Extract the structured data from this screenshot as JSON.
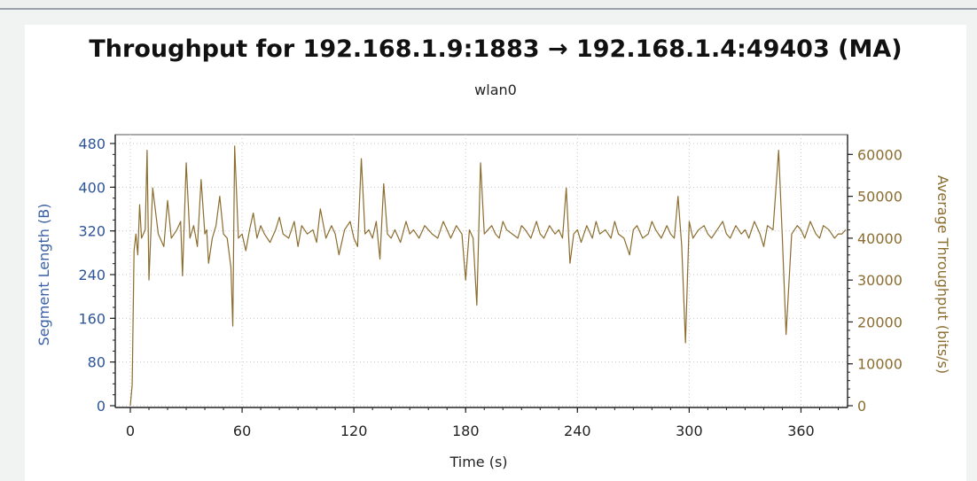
{
  "chart_data": {
    "type": "line",
    "title": "Throughput for 192.168.1.9:1883 → 192.168.1.4:49403 (MA)",
    "subtitle": "wlan0",
    "xlabel": "Time (s)",
    "ylabel_left": "Segment Length (B)",
    "ylabel_right": "Average Throughput (bits/s)",
    "x_ticks": [
      "0",
      "60",
      "120",
      "180",
      "240",
      "300",
      "360"
    ],
    "y_left_ticks": [
      "0",
      "80",
      "160",
      "240",
      "320",
      "400",
      "480"
    ],
    "y_right_ticks": [
      "0",
      "10000",
      "20000",
      "30000",
      "40000",
      "50000",
      "60000"
    ],
    "xlim": [
      0,
      385
    ],
    "ylim_left": [
      0,
      480
    ],
    "ylim_right": [
      0,
      62608
    ],
    "grid": true,
    "series": [
      {
        "color": "#8b6d2e",
        "x": [
          0,
          1,
          2,
          3,
          4,
          5,
          6,
          8,
          9,
          10,
          12,
          15,
          18,
          20,
          22,
          25,
          27,
          28,
          30,
          32,
          34,
          36,
          38,
          40,
          41,
          42,
          44,
          46,
          48,
          50,
          52,
          54,
          55,
          56,
          58,
          60,
          62,
          64,
          66,
          68,
          70,
          72,
          75,
          78,
          80,
          82,
          85,
          88,
          90,
          92,
          95,
          98,
          100,
          102,
          105,
          108,
          110,
          112,
          115,
          118,
          120,
          122,
          124,
          126,
          128,
          130,
          132,
          134,
          136,
          138,
          140,
          142,
          145,
          148,
          150,
          152,
          155,
          158,
          160,
          162,
          165,
          168,
          170,
          172,
          175,
          178,
          180,
          182,
          184,
          186,
          188,
          190,
          192,
          194,
          196,
          198,
          200,
          202,
          205,
          208,
          210,
          212,
          215,
          218,
          220,
          222,
          225,
          228,
          230,
          232,
          234,
          236,
          238,
          240,
          242,
          245,
          248,
          250,
          252,
          255,
          258,
          260,
          262,
          265,
          268,
          270,
          272,
          275,
          278,
          280,
          282,
          285,
          288,
          290,
          292,
          294,
          296,
          298,
          300,
          302,
          305,
          308,
          310,
          312,
          315,
          318,
          320,
          322,
          325,
          328,
          330,
          332,
          335,
          338,
          340,
          342,
          345,
          348,
          350,
          352,
          355,
          358,
          360,
          362,
          365,
          368,
          370,
          372,
          375,
          378,
          380,
          382,
          384
        ],
        "y": [
          0,
          5000,
          37000,
          41000,
          36000,
          48000,
          40000,
          42000,
          61000,
          30000,
          52000,
          41000,
          38000,
          49000,
          40000,
          42000,
          44000,
          31000,
          58000,
          40000,
          43000,
          38000,
          54000,
          41000,
          42000,
          34000,
          40000,
          43000,
          50000,
          41000,
          40000,
          33000,
          19000,
          62000,
          40000,
          41000,
          37000,
          42000,
          46000,
          40000,
          43000,
          41000,
          39000,
          42000,
          45000,
          41000,
          40000,
          44000,
          38000,
          43000,
          41000,
          42000,
          39000,
          47000,
          40000,
          43000,
          41000,
          36000,
          42000,
          44000,
          40000,
          38000,
          59000,
          41000,
          42000,
          40000,
          44000,
          35000,
          53000,
          41000,
          40000,
          42000,
          39000,
          44000,
          41000,
          42000,
          40000,
          43000,
          42000,
          41000,
          40000,
          44000,
          42000,
          40000,
          43000,
          41000,
          30000,
          42000,
          40000,
          24000,
          58000,
          41000,
          42000,
          43000,
          41000,
          40000,
          44000,
          42000,
          41000,
          40000,
          43000,
          42000,
          40000,
          44000,
          41000,
          40000,
          43000,
          41000,
          42000,
          40000,
          52000,
          34000,
          41000,
          42000,
          39000,
          43000,
          40000,
          44000,
          41000,
          42000,
          40000,
          44000,
          41000,
          40000,
          36000,
          42000,
          43000,
          40000,
          41000,
          44000,
          42000,
          40000,
          43000,
          41000,
          40000,
          50000,
          38000,
          15000,
          44000,
          40000,
          42000,
          43000,
          41000,
          40000,
          42000,
          44000,
          41000,
          40000,
          43000,
          41000,
          42000,
          40000,
          44000,
          41000,
          38000,
          43000,
          42000,
          61000,
          40000,
          17000,
          41000,
          43000,
          42000,
          40000,
          44000,
          41000,
          40000,
          43000,
          42000,
          40000,
          41000,
          41000,
          42000
        ]
      }
    ]
  }
}
